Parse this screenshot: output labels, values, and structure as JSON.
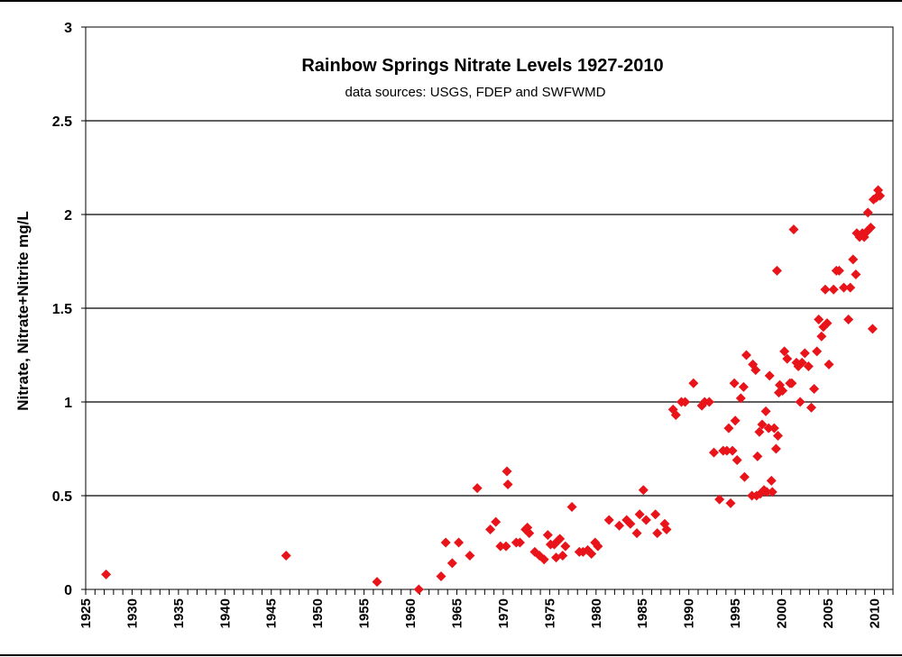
{
  "chart_data": {
    "type": "scatter",
    "title": "Rainbow Springs Nitrate Levels 1927-2010",
    "subtitle": "data sources: USGS, FDEP and SWFWMD",
    "xlabel": "",
    "ylabel": "Nitrate, Nitrate+Nitrite mg/L",
    "xlim": [
      1925,
      2012
    ],
    "ylim": [
      0,
      3
    ],
    "yticks": [
      0,
      0.5,
      1,
      1.5,
      2,
      2.5,
      3
    ],
    "ytick_labels": [
      "0",
      "0.5",
      "1",
      "1.5",
      "2",
      "2.5",
      "3"
    ],
    "xticks": [
      1925,
      1930,
      1935,
      1940,
      1945,
      1950,
      1955,
      1960,
      1965,
      1970,
      1975,
      1980,
      1985,
      1990,
      1995,
      2000,
      2005,
      2010
    ],
    "xtick_labels": [
      "1925",
      "1930",
      "1935",
      "1940",
      "1945",
      "1950",
      "1955",
      "1960",
      "1965",
      "1970",
      "1975",
      "1980",
      "1985",
      "1990",
      "1995",
      "2000",
      "2005",
      "2010"
    ],
    "grid": "horizontal",
    "marker_color": "#e8141a",
    "points": [
      [
        1927.2,
        0.08
      ],
      [
        1946.6,
        0.18
      ],
      [
        1956.4,
        0.04
      ],
      [
        1960.9,
        0.0
      ],
      [
        1963.3,
        0.07
      ],
      [
        1963.8,
        0.25
      ],
      [
        1964.5,
        0.14
      ],
      [
        1965.2,
        0.25
      ],
      [
        1966.4,
        0.18
      ],
      [
        1967.2,
        0.54
      ],
      [
        1968.6,
        0.32
      ],
      [
        1969.2,
        0.36
      ],
      [
        1969.7,
        0.23
      ],
      [
        1970.3,
        0.23
      ],
      [
        1970.4,
        0.63
      ],
      [
        1970.5,
        0.56
      ],
      [
        1971.4,
        0.25
      ],
      [
        1971.8,
        0.25
      ],
      [
        1972.4,
        0.32
      ],
      [
        1972.6,
        0.33
      ],
      [
        1972.8,
        0.3
      ],
      [
        1973.4,
        0.2
      ],
      [
        1973.9,
        0.18
      ],
      [
        1974.4,
        0.16
      ],
      [
        1974.8,
        0.29
      ],
      [
        1975.1,
        0.24
      ],
      [
        1975.5,
        0.24
      ],
      [
        1975.7,
        0.17
      ],
      [
        1975.9,
        0.26
      ],
      [
        1976.1,
        0.27
      ],
      [
        1976.4,
        0.18
      ],
      [
        1976.7,
        0.23
      ],
      [
        1977.4,
        0.44
      ],
      [
        1978.2,
        0.2
      ],
      [
        1978.6,
        0.2
      ],
      [
        1979.1,
        0.21
      ],
      [
        1979.5,
        0.19
      ],
      [
        1979.9,
        0.25
      ],
      [
        1980.2,
        0.23
      ],
      [
        1981.4,
        0.37
      ],
      [
        1982.5,
        0.34
      ],
      [
        1983.3,
        0.37
      ],
      [
        1983.7,
        0.35
      ],
      [
        1984.4,
        0.3
      ],
      [
        1984.7,
        0.4
      ],
      [
        1985.1,
        0.53
      ],
      [
        1985.4,
        0.37
      ],
      [
        1986.4,
        0.4
      ],
      [
        1986.6,
        0.3
      ],
      [
        1987.4,
        0.35
      ],
      [
        1987.6,
        0.32
      ],
      [
        1988.3,
        0.96
      ],
      [
        1988.6,
        0.93
      ],
      [
        1989.2,
        1.0
      ],
      [
        1989.6,
        1.0
      ],
      [
        1990.5,
        1.1
      ],
      [
        1991.4,
        0.98
      ],
      [
        1991.7,
        1.0
      ],
      [
        1992.2,
        1.0
      ],
      [
        1992.7,
        0.73
      ],
      [
        1993.3,
        0.48
      ],
      [
        1993.7,
        0.74
      ],
      [
        1994.1,
        0.74
      ],
      [
        1994.3,
        0.86
      ],
      [
        1994.5,
        0.46
      ],
      [
        1994.7,
        0.74
      ],
      [
        1994.9,
        1.1
      ],
      [
        1995.0,
        0.9
      ],
      [
        1995.2,
        0.69
      ],
      [
        1995.6,
        1.02
      ],
      [
        1995.9,
        1.08
      ],
      [
        1996.0,
        0.6
      ],
      [
        1996.2,
        1.25
      ],
      [
        1996.8,
        0.5
      ],
      [
        1996.9,
        1.2
      ],
      [
        1997.2,
        1.17
      ],
      [
        1997.3,
        0.5
      ],
      [
        1997.4,
        0.71
      ],
      [
        1997.6,
        0.84
      ],
      [
        1997.7,
        0.51
      ],
      [
        1997.9,
        0.88
      ],
      [
        1998.1,
        0.53
      ],
      [
        1998.3,
        0.95
      ],
      [
        1998.4,
        0.52
      ],
      [
        1998.6,
        0.86
      ],
      [
        1998.7,
        1.14
      ],
      [
        1998.9,
        0.58
      ],
      [
        1999.0,
        0.52
      ],
      [
        1999.2,
        0.86
      ],
      [
        1999.4,
        0.75
      ],
      [
        1999.5,
        1.7
      ],
      [
        1999.6,
        0.82
      ],
      [
        1999.7,
        1.05
      ],
      [
        1999.8,
        1.09
      ],
      [
        2000.1,
        1.06
      ],
      [
        2000.3,
        1.27
      ],
      [
        2000.6,
        1.23
      ],
      [
        2000.9,
        1.1
      ],
      [
        2001.1,
        1.1
      ],
      [
        2001.3,
        1.92
      ],
      [
        2001.6,
        1.21
      ],
      [
        2001.8,
        1.19
      ],
      [
        2002.0,
        1.0
      ],
      [
        2002.2,
        1.21
      ],
      [
        2002.5,
        1.26
      ],
      [
        2002.9,
        1.19
      ],
      [
        2003.2,
        0.97
      ],
      [
        2003.5,
        1.07
      ],
      [
        2003.8,
        1.27
      ],
      [
        2004.0,
        1.44
      ],
      [
        2004.3,
        1.35
      ],
      [
        2004.5,
        1.4
      ],
      [
        2004.7,
        1.6
      ],
      [
        2004.9,
        1.42
      ],
      [
        2005.1,
        1.2
      ],
      [
        2005.6,
        1.6
      ],
      [
        2005.9,
        1.7
      ],
      [
        2006.2,
        1.7
      ],
      [
        2006.7,
        1.61
      ],
      [
        2007.2,
        1.44
      ],
      [
        2007.4,
        1.61
      ],
      [
        2007.7,
        1.76
      ],
      [
        2008.0,
        1.68
      ],
      [
        2008.1,
        1.9
      ],
      [
        2008.4,
        1.88
      ],
      [
        2008.7,
        1.9
      ],
      [
        2008.9,
        1.88
      ],
      [
        2009.2,
        1.91
      ],
      [
        2009.3,
        2.01
      ],
      [
        2009.6,
        1.93
      ],
      [
        2009.8,
        1.39
      ],
      [
        2009.9,
        2.08
      ],
      [
        2010.2,
        2.09
      ],
      [
        2010.4,
        2.13
      ],
      [
        2010.6,
        2.1
      ]
    ]
  }
}
